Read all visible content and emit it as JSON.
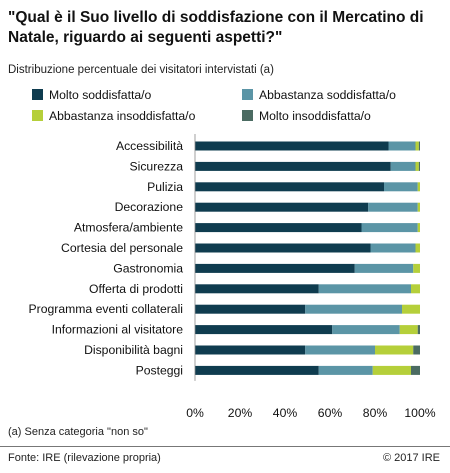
{
  "chart_data": {
    "type": "bar",
    "stacked": true,
    "orientation": "horizontal",
    "title": "\"Qual è il Suo livello di soddisfazione con il Mercatino di Natale, riguardo ai seguenti aspetti?\"",
    "subtitle": "Distribuzione percentuale dei visitatori intervistati (a)",
    "categories": [
      "Accessibilità",
      "Sicurezza",
      "Pulizia",
      "Decorazione",
      "Atmosfera/ambiente",
      "Cortesia del personale",
      "Gastronomia",
      "Offerta di prodotti",
      "Programma eventi collaterali",
      "Informazioni al visitatore",
      "Disponibilità bagni",
      "Posteggi"
    ],
    "series": [
      {
        "name": "Molto soddisfatta/o",
        "color": "#0f3c4f",
        "values": [
          86,
          87,
          84,
          77,
          74,
          78,
          71,
          55,
          49,
          61,
          49,
          55
        ]
      },
      {
        "name": "Abbastanza soddisfatta/o",
        "color": "#5b95a6",
        "values": [
          12,
          11,
          15,
          22,
          25,
          20,
          26,
          41,
          43,
          30,
          31,
          24
        ]
      },
      {
        "name": "Abbastanza insoddisfatta/o",
        "color": "#b5cf3a",
        "values": [
          1.5,
          1.5,
          1,
          1,
          1,
          2,
          3,
          4,
          8,
          8,
          17,
          17
        ]
      },
      {
        "name": "Molto insoddisfatta/o",
        "color": "#4b6b62",
        "values": [
          0.5,
          0.5,
          0,
          0,
          0,
          0,
          0,
          0,
          0,
          1,
          3,
          4
        ]
      }
    ],
    "xlim": [
      0,
      100
    ],
    "xticks": [
      "0%",
      "20%",
      "40%",
      "60%",
      "80%",
      "100%"
    ],
    "legend_position": "top",
    "grid": false
  },
  "footnote": "(a) Senza categoria \"non so\"",
  "source": "Fonte: IRE (rilevazione propria)",
  "copyright": "© 2017 IRE"
}
